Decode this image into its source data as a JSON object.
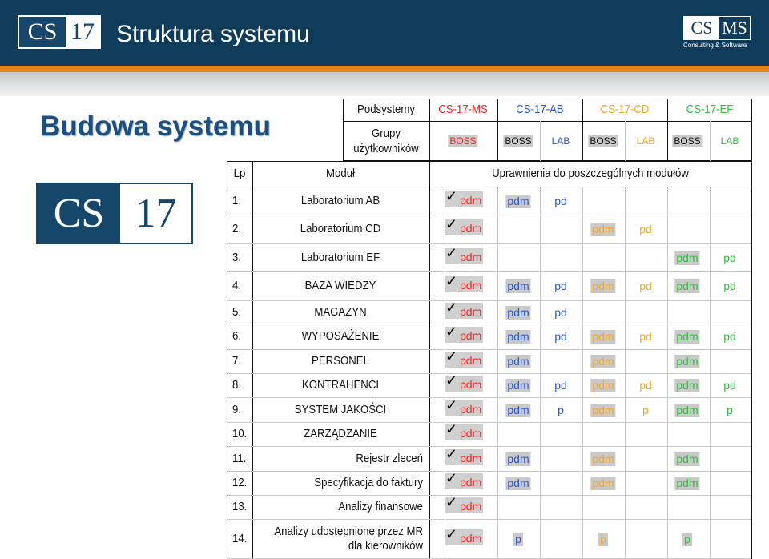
{
  "header": {
    "logo_left": {
      "part1": "CS",
      "part2": "17"
    },
    "title": "Struktura systemu",
    "logo_right": {
      "part1": "CS",
      "part2": "MS",
      "subtitle": "Consulting & Software"
    }
  },
  "left": {
    "title": "Budowa systemu",
    "logo": {
      "part1": "CS",
      "part2": "17"
    }
  },
  "colors": {
    "header_bg": "#0f3c5a",
    "accent_orange": "#e7831f",
    "title_blue": "#1b4f80",
    "ms_red": "#ff2020",
    "ab_blue": "#2a57d6",
    "cd_orange": "#f5a623",
    "ef_green": "#2fc23a"
  },
  "table": {
    "podsystemy_label": "Podsystemy",
    "grupy_label_line1": "Grupy",
    "grupy_label_line2": "użytkowników",
    "subsystems": [
      "CS-17-MS",
      "CS-17-AB",
      "CS-17-CD",
      "CS-17-EF"
    ],
    "groups": [
      "BOSS",
      "BOSS",
      "LAB",
      "BOSS",
      "LAB",
      "BOSS",
      "LAB"
    ],
    "col_lp": "Lp",
    "col_modul": "Moduł",
    "col_uprawnienia": "Uprawnienia do poszczególnych modułów",
    "check_mark": "✓",
    "rows": [
      {
        "lp": "1.",
        "modul": "Laboratorium AB",
        "ms": "pdm",
        "ab_boss": "pdm",
        "ab_lab": "pd",
        "cd_boss": "",
        "cd_lab": "",
        "ef_boss": "",
        "ef_lab": ""
      },
      {
        "lp": "2.",
        "modul": "Laboratorium CD",
        "ms": "pdm",
        "ab_boss": "",
        "ab_lab": "",
        "cd_boss": "pdm",
        "cd_lab": "pd",
        "ef_boss": "",
        "ef_lab": ""
      },
      {
        "lp": "3.",
        "modul": "Laboratorium EF",
        "ms": "pdm",
        "ab_boss": "",
        "ab_lab": "",
        "cd_boss": "",
        "cd_lab": "",
        "ef_boss": "pdm",
        "ef_lab": "pd"
      },
      {
        "lp": "4.",
        "modul": "BAZA WIEDZY",
        "ms": "pdm",
        "ab_boss": "pdm",
        "ab_lab": "pd",
        "cd_boss": "pdm",
        "cd_lab": "pd",
        "ef_boss": "pdm",
        "ef_lab": "pd"
      },
      {
        "lp": "5.",
        "modul": "MAGAZYN",
        "ms": "pdm",
        "ab_boss": "pdm",
        "ab_lab": "pd",
        "cd_boss": "",
        "cd_lab": "",
        "ef_boss": "",
        "ef_lab": ""
      },
      {
        "lp": "6.",
        "modul": "WYPOSAŻENIE",
        "ms": "pdm",
        "ab_boss": "pdm",
        "ab_lab": "pd",
        "cd_boss": "pdm",
        "cd_lab": "pd",
        "ef_boss": "pdm",
        "ef_lab": "pd"
      },
      {
        "lp": "7.",
        "modul": "PERSONEL",
        "ms": "pdm",
        "ab_boss": "pdm",
        "ab_lab": "",
        "cd_boss": "pdm",
        "cd_lab": "",
        "ef_boss": "pdm",
        "ef_lab": ""
      },
      {
        "lp": "8.",
        "modul": "KONTRAHENCI",
        "ms": "pdm",
        "ab_boss": "pdm",
        "ab_lab": "pd",
        "cd_boss": "pdm",
        "cd_lab": "pd",
        "ef_boss": "pdm",
        "ef_lab": "pd"
      },
      {
        "lp": "9.",
        "modul": "SYSTEM JAKOŚCI",
        "ms": "pdm",
        "ab_boss": "pdm",
        "ab_lab": "p",
        "cd_boss": "pdm",
        "cd_lab": "p",
        "ef_boss": "pdm",
        "ef_lab": "p"
      },
      {
        "lp": "10.",
        "modul": "ZARZĄDZANIE",
        "ms": "pdm",
        "ab_boss": "",
        "ab_lab": "",
        "cd_boss": "",
        "cd_lab": "",
        "ef_boss": "",
        "ef_lab": ""
      },
      {
        "lp": "11.",
        "modul": "Rejestr zleceń",
        "ms": "pdm",
        "ab_boss": "pdm",
        "ab_lab": "",
        "cd_boss": "pdm",
        "cd_lab": "",
        "ef_boss": "pdm",
        "ef_lab": ""
      },
      {
        "lp": "12.",
        "modul": "Specyfikacja do faktury",
        "ms": "pdm",
        "ab_boss": "pdm",
        "ab_lab": "",
        "cd_boss": "pdm",
        "cd_lab": "",
        "ef_boss": "pdm",
        "ef_lab": ""
      },
      {
        "lp": "13.",
        "modul": "Analizy finansowe",
        "ms": "pdm",
        "ab_boss": "",
        "ab_lab": "",
        "cd_boss": "",
        "cd_lab": "",
        "ef_boss": "",
        "ef_lab": ""
      },
      {
        "lp": "14.",
        "modul": "Analizy udostępnione przez MR\ndla kierowników",
        "ms": "pdm",
        "ab_boss": "p",
        "ab_lab": "",
        "cd_boss": "p",
        "cd_lab": "",
        "ef_boss": "p",
        "ef_lab": ""
      }
    ]
  }
}
